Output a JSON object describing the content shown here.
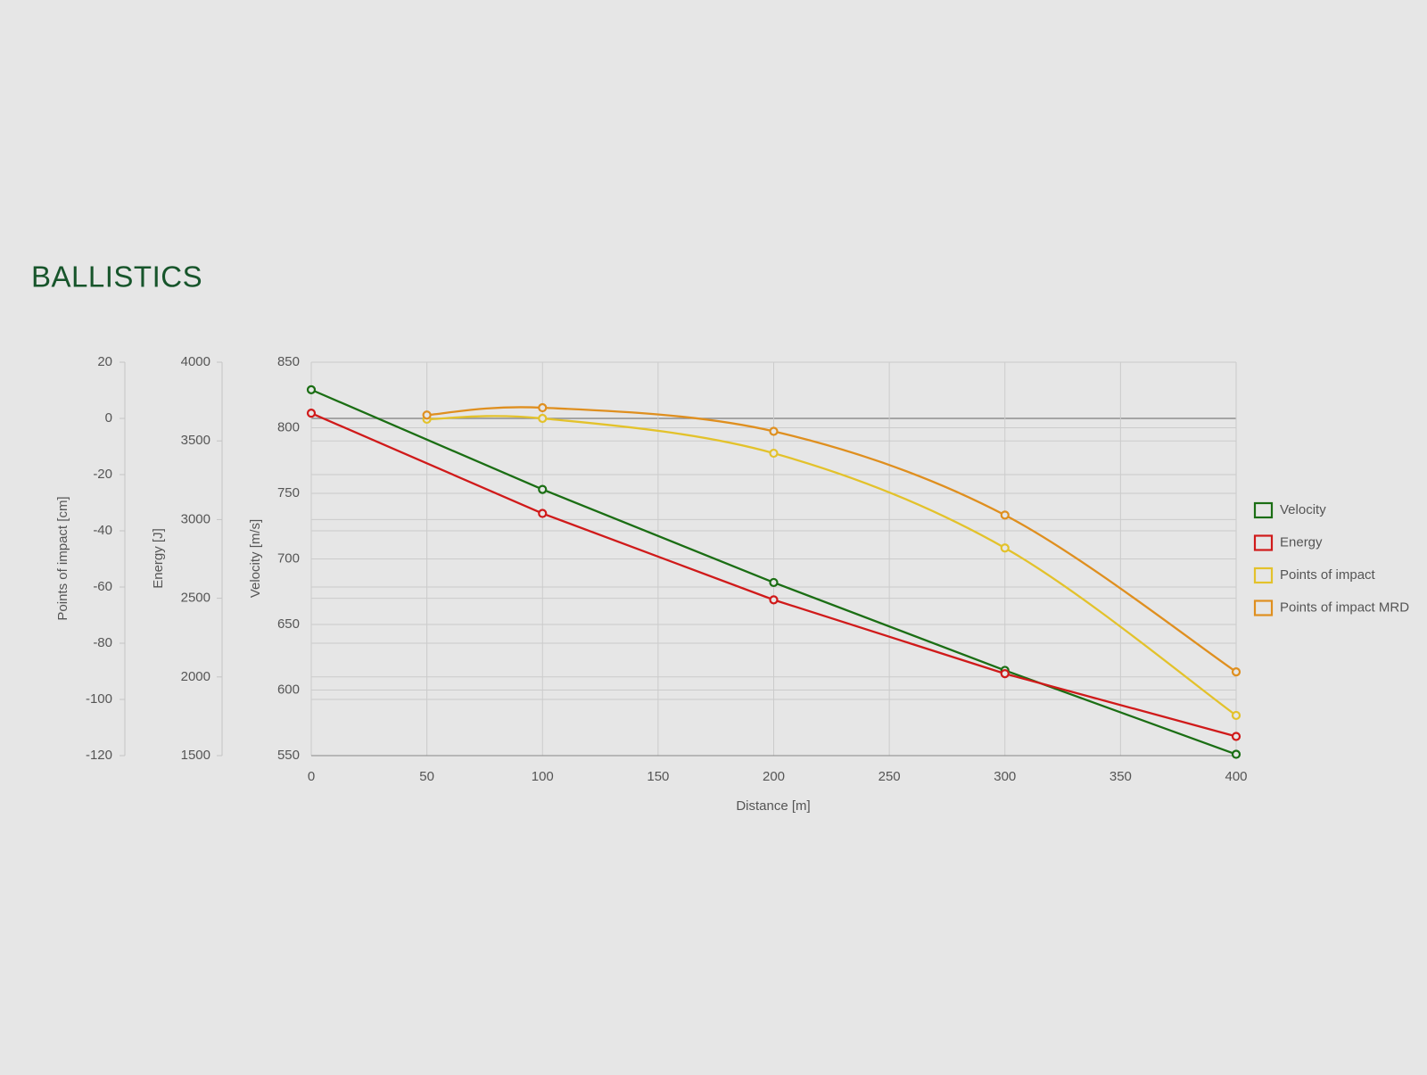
{
  "chart_data": {
    "type": "line",
    "title": "BALLISTICS",
    "x_label": "Distance [m]",
    "y_label": "Velocity [m/s]",
    "y2_label": "Energy [J]",
    "y3_label": "Points of impact [cm]",
    "xlim": [
      0,
      400
    ],
    "xticks": [
      0,
      50,
      100,
      150,
      200,
      250,
      300,
      350,
      400
    ],
    "ylim": [
      550,
      850
    ],
    "yticks": [
      550,
      600,
      650,
      700,
      750,
      800,
      850
    ],
    "y2lim": [
      1500,
      4000
    ],
    "y2ticks": [
      1500,
      2000,
      2500,
      3000,
      3500,
      4000
    ],
    "y3lim": [
      -120,
      20
    ],
    "y3ticks": [
      -120,
      -100,
      -80,
      -60,
      -40,
      -20,
      0,
      20
    ],
    "grid": true,
    "legend": "right",
    "series": [
      {
        "name": "Velocity",
        "color": "#1b6e14",
        "smooth": false,
        "x": [
          0,
          100,
          200,
          300,
          400
        ],
        "values": [
          829,
          753,
          682,
          615,
          551
        ]
      },
      {
        "name": "Energy",
        "color": "#d01a1a",
        "axis": "y2",
        "smooth": false,
        "x": [
          0,
          100,
          200,
          300,
          400
        ],
        "values": [
          3676,
          3039,
          2490,
          2021,
          1622
        ]
      },
      {
        "name": "Points of impact",
        "color": "#e3c22b",
        "axis": "y3",
        "smooth": true,
        "x": [
          50,
          100,
          200,
          300,
          400
        ],
        "values": [
          -0.3,
          0,
          -12.4,
          -46.1,
          -105.7
        ]
      },
      {
        "name": "Points of impact MRD",
        "color": "#df8f1f",
        "axis": "y3",
        "smooth": true,
        "x": [
          50,
          100,
          200,
          300,
          400
        ],
        "values": [
          1.2,
          3.8,
          -4.6,
          -34.4,
          -90.2
        ]
      }
    ]
  }
}
